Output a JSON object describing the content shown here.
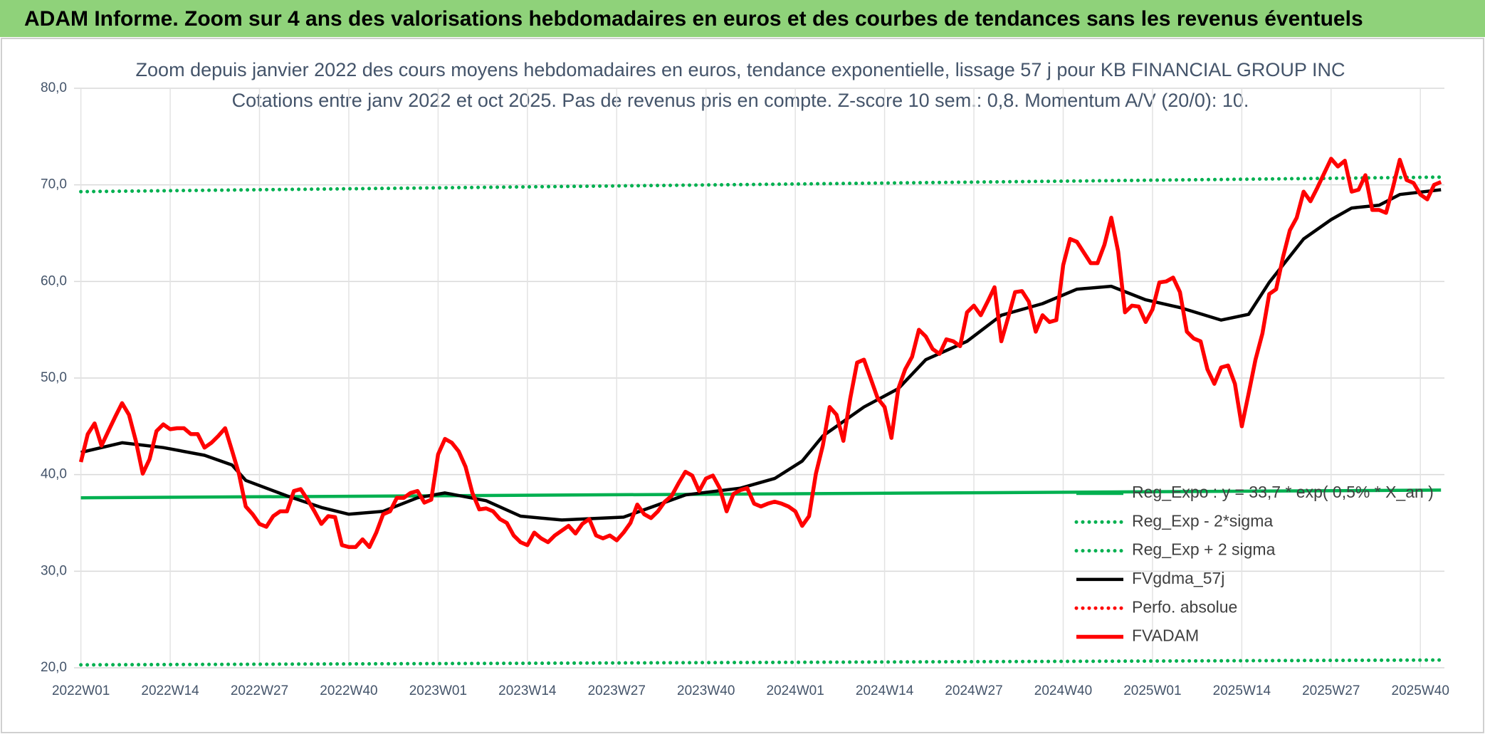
{
  "header": {
    "title": "ADAM Informe. Zoom sur 4 ans des valorisations hebdomadaires en euros et des courbes de tendances sans les revenus éventuels"
  },
  "chart_data": {
    "type": "line",
    "title": "Zoom depuis janvier 2022 des cours moyens hebdomadaires en euros, tendance exponentielle, lissage 57 j pour KB FINANCIAL GROUP INC",
    "subtitle": "Cotations entre janv 2022 et oct 2025. Pas de revenus pris en compte. Z-score 10 sem.: 0,8. Momentum A/V (20/0): 10.",
    "x": [
      0,
      1,
      2,
      3,
      4,
      5,
      6,
      7,
      8,
      9,
      10,
      11,
      12,
      13,
      14,
      15,
      16,
      17,
      18,
      19,
      20,
      21,
      22,
      23,
      24,
      25,
      26,
      27,
      28,
      29,
      30,
      31,
      32,
      33,
      34,
      35,
      36,
      37,
      38,
      39,
      40,
      41,
      42,
      43,
      44,
      45,
      46,
      47,
      48,
      49,
      50,
      51,
      52,
      53,
      54,
      55,
      56,
      57,
      58,
      59,
      60,
      61,
      62,
      63,
      64,
      65,
      66,
      67,
      68,
      69,
      70,
      71,
      72,
      73,
      74,
      75,
      76,
      77,
      78,
      79,
      80,
      81,
      82,
      83,
      84,
      85,
      86,
      87,
      88,
      89,
      90,
      91,
      92,
      93,
      94,
      95,
      96,
      97,
      98,
      99,
      100,
      101,
      102,
      103,
      104,
      105,
      106,
      107,
      108,
      109,
      110,
      111,
      112,
      113,
      114,
      115,
      116,
      117,
      118,
      119,
      120,
      121,
      122,
      123,
      124,
      125,
      126,
      127,
      128,
      129,
      130,
      131,
      132,
      133,
      134,
      135,
      136,
      137,
      138,
      139,
      140,
      141,
      142,
      143,
      144,
      145,
      146,
      147,
      148,
      149,
      150,
      151,
      152,
      153,
      154,
      155,
      156,
      157,
      158,
      159,
      160,
      161,
      162,
      163,
      164,
      165,
      166,
      167,
      168,
      169,
      170,
      171,
      172,
      173,
      174,
      175,
      176,
      177,
      178,
      179,
      180,
      181,
      182,
      183,
      184,
      185,
      186,
      187,
      188,
      189,
      190,
      191,
      192,
      193,
      194,
      195,
      196,
      197,
      198
    ],
    "xlim": [
      -1,
      198.5
    ],
    "xticks": [
      {
        "value": 0,
        "label": "2022W01"
      },
      {
        "value": 13,
        "label": "2022W14"
      },
      {
        "value": 26,
        "label": "2022W27"
      },
      {
        "value": 39,
        "label": "2022W40"
      },
      {
        "value": 52,
        "label": "2023W01"
      },
      {
        "value": 65,
        "label": "2023W14"
      },
      {
        "value": 78,
        "label": "2023W27"
      },
      {
        "value": 91,
        "label": "2023W40"
      },
      {
        "value": 104,
        "label": "2024W01"
      },
      {
        "value": 117,
        "label": "2024W14"
      },
      {
        "value": 130,
        "label": "2024W27"
      },
      {
        "value": 143,
        "label": "2024W40"
      },
      {
        "value": 156,
        "label": "2025W01"
      },
      {
        "value": 169,
        "label": "2025W14"
      },
      {
        "value": 182,
        "label": "2025W27"
      },
      {
        "value": 195,
        "label": "2025W40"
      }
    ],
    "ylim": [
      20,
      80
    ],
    "yticks": [
      {
        "value": 20,
        "label": "20,0"
      },
      {
        "value": 30,
        "label": "30,0"
      },
      {
        "value": 40,
        "label": "40,0"
      },
      {
        "value": 50,
        "label": "50,0"
      },
      {
        "value": 60,
        "label": "60,0"
      },
      {
        "value": 70,
        "label": "70,0"
      },
      {
        "value": 80,
        "label": "80,0"
      }
    ],
    "grid": true,
    "legend": "right",
    "series": [
      {
        "name": "Reg_Expo : y = 33,7 * exp( 0,5% * X_an )",
        "color": "#00b050",
        "style": "solid",
        "x": [
          0,
          198
        ],
        "values": [
          37.6,
          38.4
        ]
      },
      {
        "name": "Reg_Exp - 2*sigma",
        "color": "#00b050",
        "style": "dotted",
        "x": [
          0,
          198
        ],
        "values": [
          20.3,
          20.8
        ]
      },
      {
        "name": "Reg_Exp + 2 sigma",
        "color": "#00b050",
        "style": "dotted",
        "x": [
          0,
          198
        ],
        "values": [
          69.3,
          70.8
        ]
      },
      {
        "name": "FVgdma_57j",
        "color": "#000000",
        "style": "solid",
        "x": [
          0,
          6,
          12,
          18,
          22,
          24,
          30,
          35,
          39,
          44,
          49,
          53,
          59,
          64,
          70,
          79,
          88,
          96,
          101,
          105,
          108,
          114,
          119,
          123,
          129,
          134,
          140,
          145,
          150,
          155,
          160,
          166,
          170,
          173,
          178,
          182,
          185,
          189,
          192,
          198
        ],
        "values": [
          42.3,
          43.3,
          42.8,
          42.0,
          41.0,
          39.4,
          37.8,
          36.6,
          35.9,
          36.2,
          37.6,
          38.1,
          37.3,
          35.7,
          35.3,
          35.6,
          37.9,
          38.6,
          39.6,
          41.4,
          44.0,
          47.0,
          48.9,
          51.9,
          53.8,
          56.5,
          57.7,
          59.2,
          59.5,
          58.1,
          57.3,
          56.0,
          56.6,
          59.9,
          64.4,
          66.4,
          67.6,
          67.9,
          69.0,
          69.5
        ]
      },
      {
        "name": "Perfo. absolue",
        "color": "#ff0000",
        "style": "dotted",
        "x": [],
        "values": []
      },
      {
        "name": "FVADAM",
        "color": "#ff0000",
        "style": "solid",
        "values": [
          41.3,
          44.2,
          45.3,
          43.0,
          44.5,
          46.0,
          47.4,
          46.2,
          43.5,
          40.1,
          41.6,
          44.5,
          45.2,
          44.7,
          44.8,
          44.8,
          44.2,
          44.2,
          42.8,
          43.3,
          44.0,
          44.8,
          42.5,
          40.1,
          36.7,
          35.9,
          34.9,
          34.6,
          35.7,
          36.2,
          36.2,
          38.3,
          38.5,
          37.4,
          36.2,
          34.9,
          35.7,
          35.6,
          32.7,
          32.5,
          32.5,
          33.3,
          32.5,
          34.0,
          35.9,
          36.2,
          37.6,
          37.6,
          38.1,
          38.3,
          37.1,
          37.4,
          42.1,
          43.7,
          43.3,
          42.4,
          40.8,
          38.1,
          36.4,
          36.5,
          36.2,
          35.4,
          35.0,
          33.7,
          33.0,
          32.7,
          34.0,
          33.4,
          33.0,
          33.7,
          34.2,
          34.7,
          33.9,
          34.9,
          35.4,
          33.7,
          33.4,
          33.7,
          33.2,
          34.0,
          35.0,
          36.9,
          35.9,
          35.5,
          36.2,
          37.2,
          37.8,
          39.1,
          40.3,
          39.9,
          38.3,
          39.6,
          39.9,
          38.6,
          36.2,
          38.0,
          38.4,
          38.6,
          37.0,
          36.7,
          37.0,
          37.2,
          37.0,
          36.7,
          36.2,
          34.7,
          35.7,
          40.1,
          43.0,
          47.0,
          46.2,
          43.5,
          47.9,
          51.6,
          51.9,
          49.9,
          47.9,
          47.0,
          43.8,
          48.9,
          50.9,
          52.2,
          55.0,
          54.3,
          53.0,
          52.5,
          54.0,
          53.8,
          53.3,
          56.8,
          57.5,
          56.5,
          57.9,
          59.4,
          53.8,
          56.3,
          58.9,
          59.0,
          57.9,
          54.8,
          56.5,
          55.8,
          56.0,
          61.7,
          64.4,
          64.1,
          63.0,
          61.9,
          61.9,
          63.8,
          66.6,
          63.1,
          56.8,
          57.5,
          57.4,
          55.8,
          57.1,
          59.9,
          60.0,
          60.4,
          58.9,
          54.8,
          54.1,
          53.8,
          50.9,
          49.4,
          51.1,
          51.3,
          49.4,
          45.0,
          48.4,
          51.9,
          54.6,
          58.7,
          59.2,
          62.5,
          65.3,
          66.6,
          69.3,
          68.3,
          69.7,
          71.2,
          72.7,
          71.9,
          72.5,
          69.3,
          69.5,
          71.0,
          67.4,
          67.4,
          67.1,
          69.7,
          72.6,
          70.5,
          70.2,
          69.0,
          68.5,
          70.0,
          70.3
        ]
      }
    ]
  }
}
